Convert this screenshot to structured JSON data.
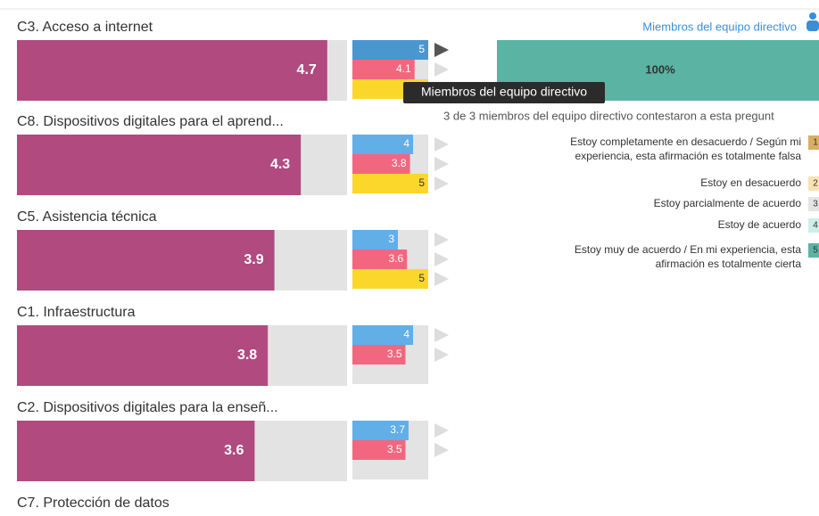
{
  "sections": [
    {
      "title": "C3. Acceso a internet",
      "score": 4.7,
      "subscores": [
        {
          "value": 5,
          "color": "#4a96cf"
        },
        {
          "value": 4.1,
          "color": "#f2677f"
        },
        {
          "value": 5,
          "color": "#fbd72b"
        }
      ]
    },
    {
      "title": "C8. Dispositivos digitales para el aprend...",
      "score": 4.3,
      "subscores": [
        {
          "value": 4,
          "color": "#62aee6"
        },
        {
          "value": 3.8,
          "color": "#f2677f"
        },
        {
          "value": 5,
          "color": "#fbd72b"
        }
      ]
    },
    {
      "title": "C5. Asistencia técnica",
      "score": 3.9,
      "subscores": [
        {
          "value": 3,
          "color": "#62aee6"
        },
        {
          "value": 3.6,
          "color": "#f2677f"
        },
        {
          "value": 5,
          "color": "#fbd72b"
        }
      ]
    },
    {
      "title": "C1. Infraestructura",
      "score": 3.8,
      "subscores": [
        {
          "value": 4,
          "color": "#62aee6"
        },
        {
          "value": 3.5,
          "color": "#f2677f"
        }
      ]
    },
    {
      "title": "C2. Dispositivos digitales para la enseñ...",
      "score": 3.6,
      "subscores": [
        {
          "value": 3.7,
          "color": "#62aee6"
        },
        {
          "value": 3.5,
          "color": "#f2677f"
        }
      ]
    },
    {
      "title": "C7. Protección de datos"
    }
  ],
  "panel": {
    "link": "Miembros del equipo directivo",
    "share": 100,
    "share_label": "100%",
    "tooltip": "Miembros del equipo directivo",
    "note": "3 de 3 miembros del equipo directivo contestaron a esta pregunt",
    "legend": [
      {
        "lines": [
          "Estoy completamente en desacuerdo / Según mi",
          "experiencia, esta afirmación es totalmente falsa"
        ],
        "value": 1,
        "color": "#d8ae62"
      },
      {
        "lines": [
          "Estoy en desacuerdo"
        ],
        "value": 2,
        "color": "#f8e2b4"
      },
      {
        "lines": [
          "Estoy parcialmente de acuerdo"
        ],
        "value": 3,
        "color": "#e4e4e4"
      },
      {
        "lines": [
          "Estoy de acuerdo"
        ],
        "value": 4,
        "color": "#cfeee8"
      },
      {
        "lines": [
          "Estoy muy de acuerdo / En mi experiencia, esta",
          "afirmación es totalmente cierta"
        ],
        "value": 5,
        "color": "#5ab3a3"
      }
    ]
  }
}
